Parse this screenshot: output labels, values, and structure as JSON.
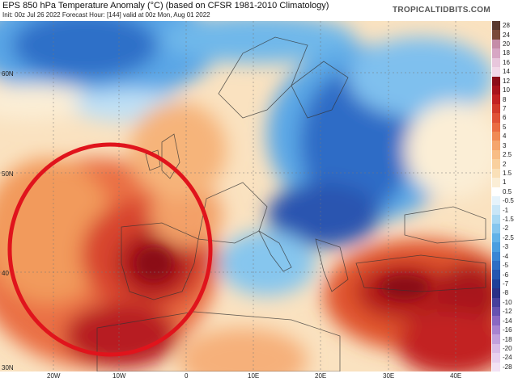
{
  "header": {
    "title": "EPS 850 hPa Temperature Anomaly (°C) (based on CFSR 1981-2010 Climatology)",
    "subtitle": "Init: 00z Jul 26 2022   Forecast Hour: [144]   valid at 00z Mon, Aug 01 2022",
    "brand": "TROPICALTIDBITS.COM"
  },
  "axes": {
    "x_ticks": [
      "20W",
      "10W",
      "0",
      "10E",
      "20E",
      "30E",
      "40E"
    ],
    "y_ticks": [
      "60N",
      "50N",
      "40",
      "30N"
    ]
  },
  "colorbar": {
    "labels": [
      "28",
      "24",
      "20",
      "18",
      "16",
      "14",
      "12",
      "10",
      "8",
      "7",
      "6",
      "5",
      "4",
      "3",
      "2.5",
      "2",
      "1.5",
      "1",
      "0.5",
      "-0.5",
      "-1",
      "-1.5",
      "-2",
      "-2.5",
      "-3",
      "-4",
      "-5",
      "-6",
      "-7",
      "-8",
      "-10",
      "-12",
      "-14",
      "-16",
      "-18",
      "-20",
      "-24",
      "-28"
    ],
    "colors": [
      "#5b3a2e",
      "#7a4a3a",
      "#c58ca8",
      "#d7a6c4",
      "#e8c6dc",
      "#f2d8e8",
      "#8b0d18",
      "#a8141c",
      "#c22222",
      "#d23a2a",
      "#e05236",
      "#ea6c42",
      "#f08a54",
      "#f5a56c",
      "#f8bd86",
      "#f9d09e",
      "#fae0b8",
      "#fbeed6",
      "#ffffff",
      "#e6f3fb",
      "#c9e6f7",
      "#a8d8f3",
      "#86c6ee",
      "#62b2e8",
      "#4a9ee0",
      "#3a86d4",
      "#2e6ec4",
      "#2656b0",
      "#1e3f98",
      "#2a2f86",
      "#473f9c",
      "#6652b0",
      "#8a68c2",
      "#a883d0",
      "#c2a0dc",
      "#dabce6",
      "#e8d0ee",
      "#f2e2f4"
    ]
  },
  "map": {
    "annotation": "red-circle-highlight-iberia"
  }
}
